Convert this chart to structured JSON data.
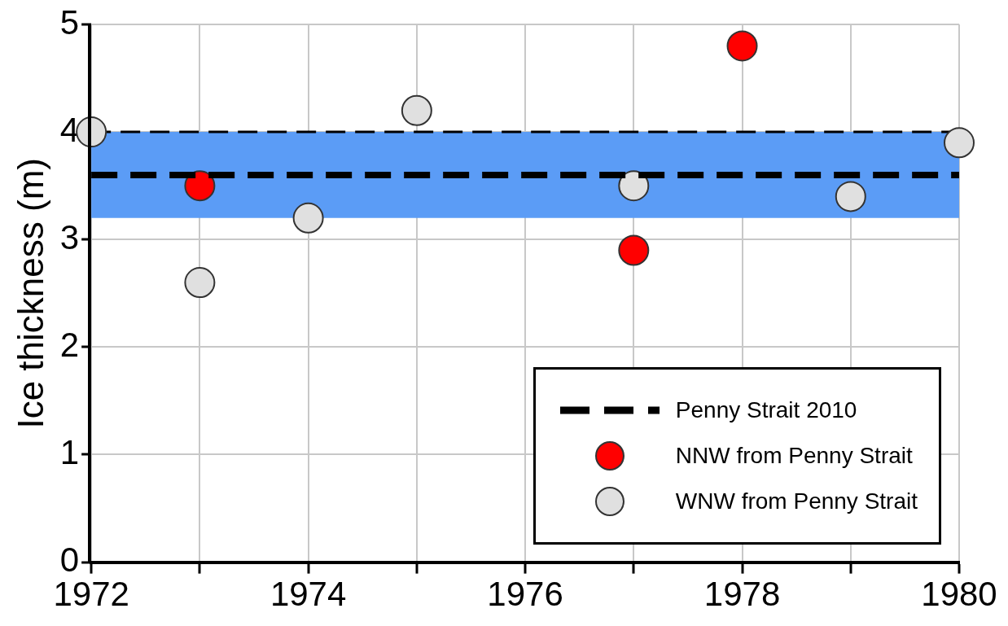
{
  "chart_data": {
    "type": "scatter",
    "ylabel": "Ice thickness (m)",
    "xlim": [
      1972,
      1980
    ],
    "ylim": [
      0,
      5
    ],
    "xticks": [
      1972,
      {
        "value": 1973,
        "label": null
      },
      1974,
      {
        "value": 1975,
        "label": null
      },
      1976,
      {
        "value": 1977,
        "label": null
      },
      1978,
      {
        "value": 1979,
        "label": null
      },
      1980
    ],
    "yticks": [
      0,
      1,
      2,
      3,
      4,
      5
    ],
    "grid": true,
    "legend": "bottom right",
    "marker": "circle",
    "bands": [
      {
        "axis": "y",
        "from": 3.2,
        "to": 4.0,
        "color": "#5b9cf6"
      }
    ],
    "ref_lines": [
      {
        "axis": "y",
        "value": 4.0,
        "color": "#000000",
        "line_style": "dashed"
      }
    ],
    "series": [
      {
        "name": "Penny Strait 2010",
        "type": "line",
        "color": "#000000",
        "line_style": "dashed",
        "marker": "none",
        "x": [
          1972,
          1980
        ],
        "values": [
          3.6,
          3.6
        ]
      },
      {
        "name": "NNW from Penny Strait",
        "color": "#ff0000",
        "x": [
          1973,
          1977,
          1978
        ],
        "values": [
          3.5,
          2.9,
          4.8
        ]
      },
      {
        "name": "WNW from Penny Strait",
        "color": "#e0e0e0",
        "x": [
          1972,
          1973,
          1974,
          1975,
          1977,
          1979,
          1980
        ],
        "values": [
          4.0,
          2.6,
          3.2,
          4.2,
          3.5,
          3.4,
          3.9
        ]
      }
    ]
  }
}
